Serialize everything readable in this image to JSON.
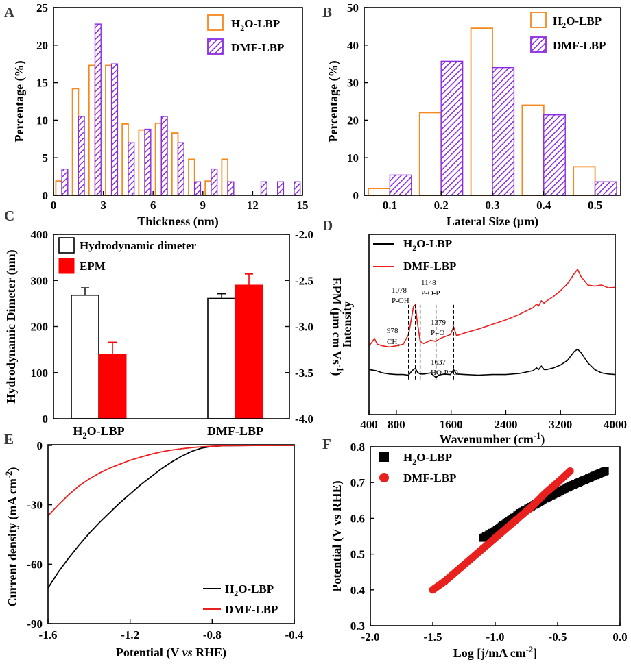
{
  "figure": {
    "panel_labels": [
      "A",
      "B",
      "C",
      "D",
      "E",
      "F"
    ]
  },
  "colors": {
    "h2o_bar": "#f5891f",
    "dmf_bar": "#8a2be2",
    "epm": "#ff0000",
    "h2o_line": "#000000",
    "dmf_line": "#e8201e"
  },
  "chart_data": [
    {
      "id": "A",
      "type": "bar",
      "xlabel": "Thickness (nm)",
      "ylabel": "Percentage (%)",
      "xlim": [
        0,
        15
      ],
      "ylim": [
        0,
        25
      ],
      "xticks": [
        0,
        3,
        6,
        9,
        12,
        15
      ],
      "xtick_labels": [
        "0",
        "3",
        "6",
        "9",
        "12",
        "15"
      ],
      "yticks": [
        0,
        5,
        10,
        15,
        20,
        25
      ],
      "ytick_labels": [
        "0",
        "5",
        "10",
        "15",
        "20",
        "25"
      ],
      "bin_centers": [
        0.5,
        1.5,
        2.5,
        3.5,
        4.5,
        5.5,
        6.5,
        7.5,
        8.5,
        9.5,
        10.5,
        11.5,
        12.5,
        13.5,
        14.5
      ],
      "legend": [
        {
          "name": "H",
          "sub": "2",
          "tail": "O-LBP",
          "style": "hollow",
          "color": "#f5891f"
        },
        {
          "name": "DMF-LBP",
          "sub": "",
          "tail": "",
          "style": "hatch",
          "color": "#8a2be2"
        }
      ],
      "series": [
        {
          "name": "H2O-LBP",
          "values": [
            1.9,
            14.2,
            17.3,
            17.3,
            9.5,
            8.7,
            9.6,
            8.3,
            4.8,
            1.9,
            4.8,
            0,
            0,
            0,
            0
          ]
        },
        {
          "name": "DMF-LBP",
          "values": [
            3.5,
            10.5,
            22.8,
            17.5,
            7.0,
            8.8,
            10.5,
            7.0,
            1.8,
            3.5,
            1.8,
            0,
            1.8,
            1.8,
            1.8
          ]
        }
      ]
    },
    {
      "id": "B",
      "type": "bar",
      "xlabel": "Lateral Size (μm)",
      "ylabel": "Percentage (%)",
      "xlim": [
        0.05,
        0.55
      ],
      "ylim": [
        0,
        50
      ],
      "categories": [
        "0.1",
        "0.2",
        "0.3",
        "0.4",
        "0.5"
      ],
      "xtick_values": [
        0.1,
        0.2,
        0.3,
        0.4,
        0.5
      ],
      "yticks": [
        0,
        10,
        20,
        30,
        40,
        50
      ],
      "ytick_labels": [
        "0",
        "10",
        "20",
        "30",
        "40",
        "50"
      ],
      "legend": [
        {
          "name": "H",
          "sub": "2",
          "tail": "O-LBP",
          "style": "hollow",
          "color": "#f5891f"
        },
        {
          "name": "DMF-LBP",
          "sub": "",
          "tail": "",
          "style": "hatch",
          "color": "#8a2be2"
        }
      ],
      "series": [
        {
          "name": "H2O-LBP",
          "values": [
            1.8,
            22.0,
            44.5,
            24.0,
            7.6
          ]
        },
        {
          "name": "DMF-LBP",
          "values": [
            5.4,
            35.7,
            34.0,
            21.4,
            3.6
          ]
        }
      ]
    },
    {
      "id": "C",
      "type": "bar",
      "xlabel": "",
      "ylabel": "Hydrodynamic Dimeter (nm)",
      "ylabel2": "EPM (μm cm Vs",
      "ylabel2_sup": "-1",
      "ylabel2_tail": ")",
      "ylim": [
        0,
        400
      ],
      "ylim2": [
        -4.0,
        -2.0
      ],
      "yticks": [
        0,
        100,
        200,
        300,
        400
      ],
      "ytick_labels": [
        "0",
        "100",
        "200",
        "300",
        "400"
      ],
      "yticks2": [
        -4.0,
        -3.5,
        -3.0,
        -2.5,
        -2.0
      ],
      "ytick2_labels": [
        "-4.0",
        "-3.5",
        "-3.0",
        "-2.5",
        "-2.0"
      ],
      "categories": [
        {
          "name": "H",
          "sub": "2",
          "tail": "O-LBP"
        },
        {
          "name": "DMF-LBP",
          "sub": "",
          "tail": ""
        }
      ],
      "legend": [
        {
          "name": "Hydrodynamic dimeter",
          "style": "hollow"
        },
        {
          "name": "EPM",
          "style": "filled"
        }
      ],
      "series": [
        {
          "name": "Hydrodynamic dimeter",
          "values": [
            268,
            261
          ],
          "errors": [
            16,
            10
          ]
        },
        {
          "name": "EPM",
          "values": [
            -3.3,
            -2.55
          ],
          "errors": [
            0.13,
            0.12
          ]
        }
      ]
    },
    {
      "id": "D",
      "type": "line",
      "xlabel": "Wavenumber (cm",
      "xlabel_sup": "-1",
      "xlabel_tail": ")",
      "ylabel": "Intensity",
      "xlim": [
        400,
        4000
      ],
      "xticks": [
        400,
        800,
        1600,
        2400,
        3200,
        4000
      ],
      "xtick_labels": [
        "400",
        "800",
        "1600",
        "2400",
        "3200",
        "4000"
      ],
      "legend": [
        {
          "name": "H",
          "sub": "2",
          "tail": "O-LBP",
          "color": "#000000"
        },
        {
          "name": "DMF-LBP",
          "sub": "",
          "tail": "",
          "color": "#e8201e"
        }
      ],
      "annotations": [
        {
          "x": 978,
          "line1": "978",
          "line2": "CH",
          "line2_sub": "2"
        },
        {
          "x": 1078,
          "line1": "1078",
          "line2": "P-OH",
          "line2_sub": ""
        },
        {
          "x": 1148,
          "line1": "1148",
          "line2": "P-O-P",
          "line2_sub": ""
        },
        {
          "x": 1379,
          "line1": "1379",
          "line2": "P=O",
          "line2_sub": ""
        },
        {
          "x": 1637,
          "line1": "1637",
          "line2": "HO-P=O",
          "line2_sub": ""
        }
      ],
      "series": [
        {
          "name": "H2O-LBP",
          "x": [
            400,
            500,
            600,
            700,
            800,
            900,
            978,
            1030,
            1078,
            1110,
            1148,
            1200,
            1300,
            1379,
            1420,
            1500,
            1590,
            1637,
            1680,
            1800,
            2000,
            2200,
            2400,
            2600,
            2800,
            2850,
            2880,
            2920,
            2960,
            3000,
            3100,
            3200,
            3300,
            3400,
            3450,
            3500,
            3600,
            3700,
            3800,
            3900,
            4000
          ],
          "y": [
            0.8,
            0.78,
            0.74,
            0.72,
            0.71,
            0.71,
            0.7,
            0.78,
            0.82,
            0.75,
            0.72,
            0.72,
            0.74,
            0.66,
            0.7,
            0.72,
            0.71,
            0.8,
            0.72,
            0.71,
            0.7,
            0.71,
            0.71,
            0.73,
            0.78,
            0.83,
            0.8,
            0.86,
            0.8,
            0.8,
            0.83,
            0.88,
            0.96,
            1.12,
            1.16,
            1.1,
            0.92,
            0.8,
            0.74,
            0.72,
            0.71
          ]
        },
        {
          "name": "DMF-LBP",
          "x": [
            400,
            440,
            480,
            520,
            600,
            700,
            800,
            900,
            978,
            1020,
            1050,
            1078,
            1100,
            1148,
            1200,
            1300,
            1379,
            1420,
            1500,
            1590,
            1637,
            1680,
            1800,
            2000,
            2200,
            2400,
            2600,
            2800,
            2850,
            2880,
            2920,
            2960,
            3000,
            3100,
            3200,
            3300,
            3400,
            3450,
            3500,
            3600,
            3700,
            3800,
            3900,
            4000
          ],
          "y": [
            1.22,
            1.28,
            1.35,
            1.25,
            1.22,
            1.2,
            1.22,
            1.25,
            1.42,
            1.7,
            1.92,
            1.95,
            1.7,
            1.3,
            1.26,
            1.32,
            1.3,
            1.34,
            1.38,
            1.42,
            1.56,
            1.4,
            1.45,
            1.52,
            1.6,
            1.68,
            1.78,
            1.9,
            1.96,
            1.93,
            2.02,
            1.98,
            2.02,
            2.1,
            2.2,
            2.32,
            2.5,
            2.58,
            2.45,
            2.3,
            2.28,
            2.3,
            2.25,
            2.26
          ]
        }
      ]
    },
    {
      "id": "E",
      "type": "line",
      "xlabel": "Potential (V ",
      "xlabel_italic": "vs",
      "xlabel_tail": " RHE)",
      "ylabel": "Current density (mA cm",
      "ylabel_sup": "-2",
      "ylabel_tail": ")",
      "xlim": [
        -1.6,
        -0.4
      ],
      "ylim": [
        -90,
        2
      ],
      "xticks": [
        -1.6,
        -1.2,
        -0.8,
        -0.4
      ],
      "xtick_labels": [
        "-1.6",
        "-1.2",
        "-0.8",
        "-0.4"
      ],
      "yticks": [
        0,
        -30,
        -60,
        -90
      ],
      "ytick_labels": [
        "0",
        "-30",
        "-60",
        "-90"
      ],
      "legend": [
        {
          "name": "H",
          "sub": "2",
          "tail": "O-LBP",
          "color": "#000000"
        },
        {
          "name": "DMF-LBP",
          "sub": "",
          "tail": "",
          "color": "#e8201e"
        }
      ],
      "series": [
        {
          "name": "H2O-LBP",
          "x": [
            -1.6,
            -1.55,
            -1.5,
            -1.45,
            -1.4,
            -1.35,
            -1.3,
            -1.25,
            -1.2,
            -1.15,
            -1.1,
            -1.05,
            -1.0,
            -0.95,
            -0.9,
            -0.85,
            -0.8,
            -0.75,
            -0.7,
            -0.6,
            -0.5,
            -0.4
          ],
          "y": [
            -72,
            -64,
            -57,
            -50.5,
            -44.5,
            -39,
            -34,
            -29,
            -24.5,
            -20,
            -16,
            -12,
            -8.5,
            -5.5,
            -3,
            -1.3,
            -0.5,
            -0.2,
            -0.1,
            -0.05,
            -0.02,
            0
          ]
        },
        {
          "name": "DMF-LBP",
          "x": [
            -1.6,
            -1.55,
            -1.5,
            -1.45,
            -1.4,
            -1.35,
            -1.3,
            -1.25,
            -1.2,
            -1.15,
            -1.1,
            -1.05,
            -1.0,
            -0.95,
            -0.9,
            -0.85,
            -0.8,
            -0.75,
            -0.7,
            -0.6,
            -0.5,
            -0.4
          ],
          "y": [
            -35.5,
            -30,
            -25,
            -20.5,
            -17,
            -14,
            -11.5,
            -9.5,
            -7.5,
            -6,
            -4.5,
            -3.3,
            -2.4,
            -1.7,
            -1.1,
            -0.7,
            -0.4,
            -0.2,
            -0.1,
            -0.05,
            -0.02,
            0
          ]
        }
      ]
    },
    {
      "id": "F",
      "type": "scatter",
      "xlabel": "Log [j/mA cm",
      "xlabel_sup": "-2",
      "xlabel_tail": "]",
      "ylabel": "Potential (V vs RHE)",
      "xlim": [
        -2.0,
        0.0
      ],
      "ylim": [
        0.3,
        0.8
      ],
      "xticks": [
        -2.0,
        -1.5,
        -1.0,
        -0.5,
        0.0
      ],
      "xtick_labels": [
        "-2.0",
        "-1.5",
        "-1.0",
        "-0.5",
        "0.0"
      ],
      "yticks": [
        0.3,
        0.4,
        0.5,
        0.6,
        0.7,
        0.8
      ],
      "ytick_labels": [
        "0.3",
        "0.4",
        "0.5",
        "0.6",
        "0.7",
        "0.8"
      ],
      "legend": [
        {
          "name": "H",
          "sub": "2",
          "tail": "O-LBP",
          "color": "#000000",
          "marker": "square"
        },
        {
          "name": "DMF-LBP",
          "sub": "",
          "tail": "",
          "color": "#e8201e",
          "marker": "circle"
        }
      ],
      "series": [
        {
          "name": "H2O-LBP",
          "x": [
            -1.1,
            -1.0,
            -0.9,
            -0.8,
            -0.7,
            -0.6,
            -0.5,
            -0.4,
            -0.3,
            -0.2,
            -0.12
          ],
          "y": [
            0.545,
            0.565,
            0.59,
            0.615,
            0.635,
            0.655,
            0.672,
            0.69,
            0.705,
            0.72,
            0.732
          ]
        },
        {
          "name": "DMF-LBP",
          "x": [
            -1.5,
            -1.4,
            -1.3,
            -1.2,
            -1.1,
            -1.0,
            -0.9,
            -0.8,
            -0.7,
            -0.6,
            -0.5,
            -0.4
          ],
          "y": [
            0.4,
            0.425,
            0.455,
            0.485,
            0.515,
            0.545,
            0.575,
            0.605,
            0.635,
            0.67,
            0.7,
            0.732
          ]
        }
      ]
    }
  ]
}
